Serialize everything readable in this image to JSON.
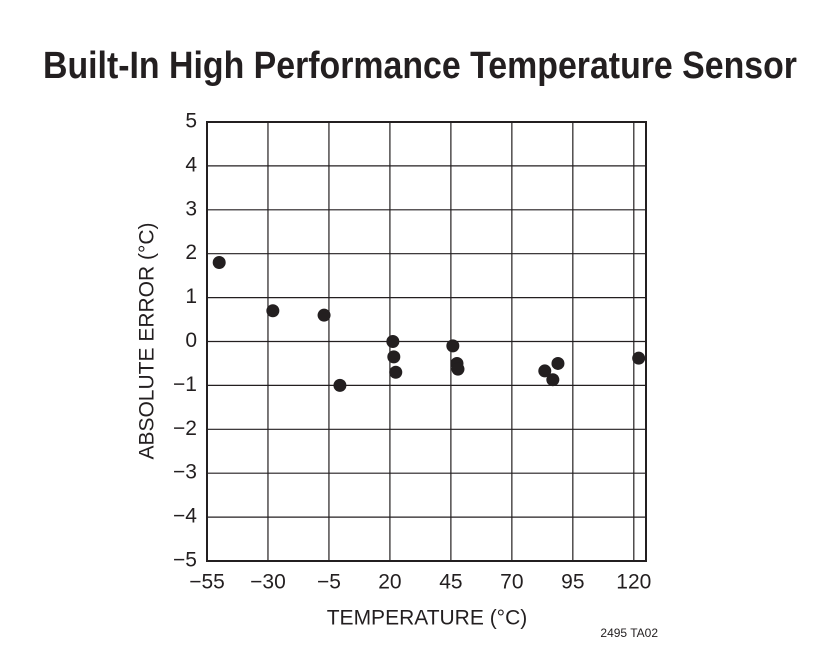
{
  "chart_data": {
    "type": "scatter",
    "title": "Built-In High Performance Temperature Sensor",
    "x_label": "TEMPERATURE (°C)",
    "y_label": "ABSOLUTE ERROR (°C)",
    "annotation": "2495 TA02",
    "color": "#231f20",
    "grid": true,
    "xlim": [
      -55,
      125
    ],
    "ylim": [
      -5,
      5
    ],
    "xticks": [
      {
        "value": -55,
        "label": "−55"
      },
      {
        "value": -30,
        "label": "−30"
      },
      {
        "value": -5,
        "label": "−5"
      },
      20,
      45,
      70,
      95,
      120
    ],
    "yticks": [
      {
        "value": -5,
        "label": "−5"
      },
      {
        "value": -4,
        "label": "−4"
      },
      {
        "value": -3,
        "label": "−3"
      },
      {
        "value": -2,
        "label": "−2"
      },
      {
        "value": -1,
        "label": "−1"
      },
      0,
      1,
      2,
      3,
      4,
      5
    ],
    "x": [
      -50,
      -28,
      -7,
      -0.5,
      21.2,
      21.6,
      22.4,
      45.8,
      47.5,
      47.9,
      83.5,
      86.8,
      88.9,
      122
    ],
    "values": [
      1.8,
      0.7,
      0.6,
      -1.0,
      0,
      -0.35,
      -0.7,
      -0.1,
      -0.5,
      -0.63,
      -0.67,
      -0.87,
      -0.5,
      -0.38
    ]
  }
}
